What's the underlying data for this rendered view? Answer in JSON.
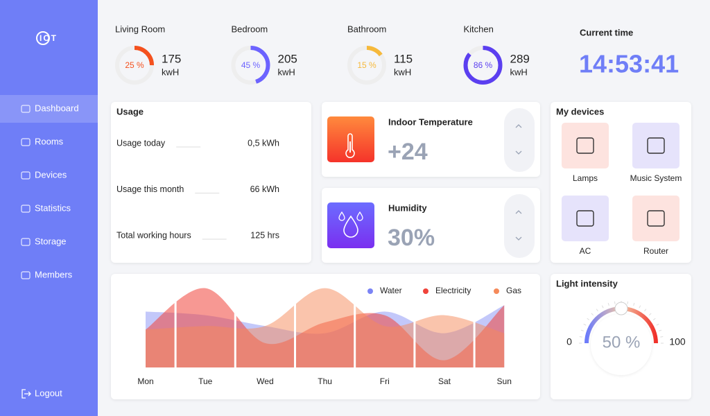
{
  "brand": "IOT",
  "nav": [
    "Dashboard",
    "Rooms",
    "Devices",
    "Statistics",
    "Storage",
    "Members"
  ],
  "active_nav": 0,
  "logout": "Logout",
  "rooms": [
    {
      "name": "Living Room",
      "percent": 25,
      "percent_label": "25 %",
      "energy": 175,
      "unit": "kwH",
      "color": "#f4511e"
    },
    {
      "name": "Bedroom",
      "percent": 45,
      "percent_label": "45 %",
      "energy": 205,
      "unit": "kwH",
      "color": "#6c63ff"
    },
    {
      "name": "Bathroom",
      "percent": 15,
      "percent_label": "15 %",
      "energy": 115,
      "unit": "kwH",
      "color": "#f6b93b"
    },
    {
      "name": "Kitchen",
      "percent": 86,
      "percent_label": "86 %",
      "energy": 289,
      "unit": "kwH",
      "color": "#5b3ff0"
    }
  ],
  "current_time": {
    "label": "Current time",
    "value": "14:53:41"
  },
  "usage": {
    "title": "Usage",
    "rows": [
      {
        "label": "Usage today",
        "value": "0,5 kWh"
      },
      {
        "label": "Usage this month",
        "value": "66 kWh"
      },
      {
        "label": "Total working hours",
        "value": "125 hrs"
      }
    ]
  },
  "climate": [
    {
      "title": "Indoor Temperature",
      "value": "+24"
    },
    {
      "title": "Humidity",
      "value": "30%"
    }
  ],
  "devices": {
    "title": "My devices",
    "items": [
      "Lamps",
      "Music System",
      "AC",
      "Router"
    ]
  },
  "usage_chart": {
    "type": "area",
    "categories": [
      "Mon",
      "Tue",
      "Wed",
      "Thu",
      "Fri",
      "Sat",
      "Sun"
    ],
    "ylim": [
      0,
      100
    ],
    "series": [
      {
        "name": "Water",
        "color": "#7b84f5",
        "values": [
          62,
          58,
          46,
          38,
          62,
          38,
          69
        ]
      },
      {
        "name": "Electricity",
        "color": "#f0433a",
        "values": [
          42,
          88,
          27,
          50,
          58,
          8,
          69
        ]
      },
      {
        "name": "Gas",
        "color": "#f58a5a",
        "values": [
          42,
          46,
          46,
          88,
          46,
          58,
          38
        ]
      }
    ]
  },
  "light": {
    "title": "Light intensity",
    "min": 0,
    "max": 100,
    "value": 50,
    "value_label": "50 %"
  }
}
